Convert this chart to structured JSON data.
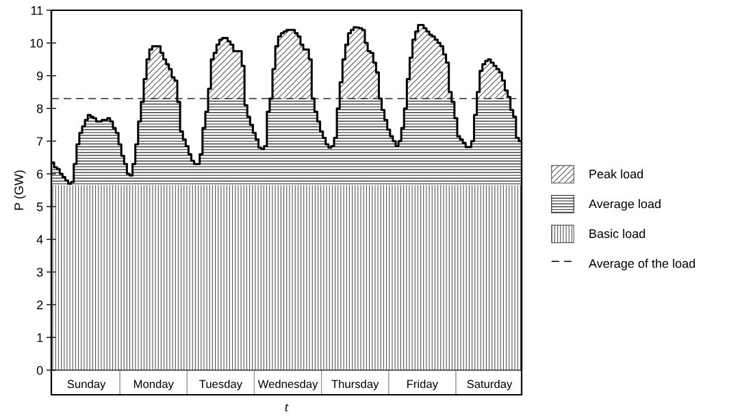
{
  "chart_data": {
    "type": "step",
    "xlabel": "t",
    "ylabel": "P (GW)",
    "categories": [
      null,
      null,
      null,
      null,
      null,
      null,
      null,
      null,
      null,
      null,
      null,
      null,
      "Sunday",
      null,
      null,
      null,
      null,
      null,
      null,
      null,
      null,
      null,
      null,
      null,
      null,
      null,
      null,
      null,
      null,
      null,
      null,
      null,
      null,
      null,
      null,
      null,
      "Monday",
      null,
      null,
      null,
      null,
      null,
      null,
      null,
      null,
      null,
      null,
      null,
      null,
      null,
      null,
      null,
      null,
      null,
      null,
      null,
      null,
      null,
      null,
      null,
      "Tuesday",
      null,
      null,
      null,
      null,
      null,
      null,
      null,
      null,
      null,
      null,
      null,
      null,
      null,
      null,
      null,
      null,
      null,
      null,
      null,
      null,
      null,
      null,
      null,
      "Wednesday",
      null,
      null,
      null,
      null,
      null,
      null,
      null,
      null,
      null,
      null,
      null,
      null,
      null,
      null,
      null,
      null,
      null,
      null,
      null,
      null,
      null,
      null,
      null,
      "Thursday",
      null,
      null,
      null,
      null,
      null,
      null,
      null,
      null,
      null,
      null,
      null,
      null,
      null,
      null,
      null,
      null,
      null,
      null,
      null,
      null,
      null,
      null,
      null,
      "Friday",
      null,
      null,
      null,
      null,
      null,
      null,
      null,
      null,
      null,
      null,
      null,
      null,
      null,
      null,
      null,
      null,
      null,
      null,
      null,
      null,
      null,
      null,
      null,
      "Saturday",
      null,
      null,
      null,
      null,
      null,
      null,
      null,
      null,
      null,
      null,
      null
    ],
    "ylim": [
      0,
      11
    ],
    "yticks": [
      0,
      1,
      2,
      3,
      4,
      5,
      6,
      7,
      8,
      9,
      10,
      11
    ],
    "series": [
      {
        "color": "#000000",
        "values": [
          6.35,
          6.2,
          6.15,
          6.0,
          5.9,
          5.8,
          5.7,
          5.75,
          6.3,
          6.9,
          7.25,
          7.45,
          7.65,
          7.8,
          7.75,
          7.7,
          7.6,
          7.6,
          7.65,
          7.65,
          7.7,
          7.6,
          7.4,
          7.25,
          6.9,
          6.55,
          6.3,
          6.0,
          5.95,
          6.3,
          6.9,
          7.6,
          8.2,
          8.9,
          9.5,
          9.8,
          9.9,
          9.9,
          9.9,
          9.7,
          9.5,
          9.35,
          9.2,
          8.95,
          8.85,
          8.2,
          7.3,
          7.05,
          6.85,
          6.6,
          6.4,
          6.3,
          6.3,
          6.6,
          7.4,
          7.9,
          8.6,
          9.5,
          9.7,
          9.95,
          10.1,
          10.15,
          10.15,
          10.05,
          9.95,
          9.75,
          9.75,
          9.75,
          9.3,
          8.1,
          7.75,
          7.5,
          7.25,
          7.05,
          6.8,
          6.76,
          6.85,
          7.9,
          8.3,
          9.2,
          9.9,
          10.2,
          10.3,
          10.35,
          10.4,
          10.4,
          10.4,
          10.3,
          10.2,
          9.95,
          9.8,
          9.8,
          9.5,
          8.3,
          7.9,
          7.6,
          7.3,
          7.1,
          6.9,
          6.8,
          6.85,
          7.1,
          8.0,
          8.8,
          9.5,
          9.95,
          10.3,
          10.4,
          10.48,
          10.47,
          10.45,
          10.4,
          10.0,
          9.75,
          9.7,
          9.4,
          9.1,
          8.3,
          7.95,
          7.65,
          7.35,
          7.15,
          7.0,
          6.85,
          7.0,
          7.4,
          8.0,
          8.9,
          9.55,
          10.1,
          10.35,
          10.55,
          10.55,
          10.45,
          10.35,
          10.25,
          10.2,
          10.1,
          10.0,
          9.9,
          9.65,
          9.4,
          8.5,
          8.2,
          7.7,
          7.15,
          7.05,
          6.95,
          6.82,
          6.82,
          7.0,
          7.8,
          8.5,
          9.15,
          9.35,
          9.45,
          9.5,
          9.4,
          9.3,
          9.2,
          9.1,
          8.85,
          8.55,
          8.35,
          7.95,
          7.75,
          7.1,
          7.0
        ]
      },
      {
        "type": "area",
        "name": "Basic load",
        "color": "#555555",
        "values": [
          5.65,
          5.65,
          5.65,
          5.65,
          5.65,
          5.65,
          5.65,
          5.65,
          5.65,
          5.65,
          5.65,
          5.65,
          5.65,
          5.65,
          5.65,
          5.65,
          5.65,
          5.65,
          5.65,
          5.65,
          5.65,
          5.65,
          5.65,
          5.65,
          5.65,
          5.65,
          5.65,
          5.65,
          5.65,
          5.65,
          5.65,
          5.65,
          5.65,
          5.65,
          5.65,
          5.65,
          5.65,
          5.65,
          5.65,
          5.65,
          5.65,
          5.65,
          5.65,
          5.65,
          5.65,
          5.65,
          5.65,
          5.65,
          5.65,
          5.65,
          5.65,
          5.65,
          5.65,
          5.65,
          5.65,
          5.65,
          5.65,
          5.65,
          5.65,
          5.65,
          5.65,
          5.65,
          5.65,
          5.65,
          5.65,
          5.65,
          5.65,
          5.65,
          5.65,
          5.65,
          5.65,
          5.65,
          5.65,
          5.65,
          5.65,
          5.65,
          5.65,
          5.65,
          5.65,
          5.65,
          5.65,
          5.65,
          5.65,
          5.65,
          5.65,
          5.65,
          5.65,
          5.65,
          5.65,
          5.65,
          5.65,
          5.65,
          5.65,
          5.65,
          5.65,
          5.65,
          5.65,
          5.65,
          5.65,
          5.65,
          5.65,
          5.65,
          5.65,
          5.65,
          5.65,
          5.65,
          5.65,
          5.65,
          5.65,
          5.65,
          5.65,
          5.65,
          5.65,
          5.65,
          5.65,
          5.65,
          5.65,
          5.65,
          5.65,
          5.65,
          5.65,
          5.65,
          5.65,
          5.65,
          5.65,
          5.65,
          5.65,
          5.65,
          5.65,
          5.65,
          5.65,
          5.65,
          5.65,
          5.65,
          5.65,
          5.65,
          5.65,
          5.65,
          5.65,
          5.65,
          5.65,
          5.65,
          5.65,
          5.65,
          5.65,
          5.65,
          5.65,
          5.65,
          5.65,
          5.65,
          5.65,
          5.65,
          5.65,
          5.65,
          5.65,
          5.65,
          5.65,
          5.65,
          5.65,
          5.65,
          5.65,
          5.65,
          5.65,
          5.65,
          5.65,
          5.65,
          5.65,
          5.65
        ]
      }
    ],
    "bands": [
      {
        "axis": "y",
        "from": 8.3,
        "to": 11,
        "label": "Peak load",
        "color": "#555555"
      },
      {
        "axis": "y",
        "from": 5.65,
        "to": 8.3,
        "label": "Average load",
        "color": "#222222"
      }
    ],
    "ref_lines": [
      {
        "axis": "y",
        "value": 8.3,
        "label": "Average of the load",
        "color": "#000000",
        "line_style": "dashed"
      }
    ],
    "legend": "right",
    "grid": false
  }
}
